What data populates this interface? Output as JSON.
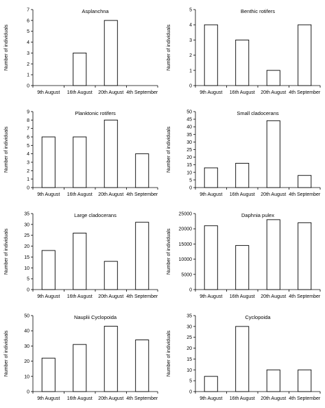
{
  "figure": {
    "xlabel_common": "",
    "ylabel_common": "Number of individuals"
  },
  "chart_data": [
    {
      "type": "bar",
      "title": "Asplanchna",
      "ylabel": "Number of individuals",
      "categories": [
        "9th August",
        "16th August",
        "20th August",
        "4th September"
      ],
      "values": [
        0,
        3,
        6,
        0
      ],
      "ylim": [
        0,
        7
      ],
      "yticks": [
        0,
        1,
        2,
        3,
        4,
        5,
        6,
        7
      ],
      "grid": false
    },
    {
      "type": "bar",
      "title": "Benthic rotifers",
      "ylabel": "Number of individuals",
      "categories": [
        "9th August",
        "16th August",
        "20th August",
        "4th September"
      ],
      "values": [
        4,
        3,
        1,
        4
      ],
      "ylim": [
        0,
        5
      ],
      "yticks": [
        0,
        1,
        2,
        3,
        4,
        5
      ],
      "grid": false
    },
    {
      "type": "bar",
      "title": "Planktonic rotifers",
      "ylabel": "Number of individuals",
      "categories": [
        "9th August",
        "16th August",
        "20th August",
        "4th September"
      ],
      "values": [
        6,
        6,
        8,
        4
      ],
      "ylim": [
        0,
        9
      ],
      "yticks": [
        0,
        1,
        2,
        3,
        4,
        5,
        6,
        7,
        8,
        9
      ],
      "grid": false
    },
    {
      "type": "bar",
      "title": "Small cladocerans",
      "ylabel": "Number of individuals",
      "categories": [
        "9th August",
        "16th August",
        "20th August",
        "4th September"
      ],
      "values": [
        13,
        16,
        44,
        8
      ],
      "ylim": [
        0,
        50
      ],
      "yticks": [
        0,
        5,
        10,
        15,
        20,
        25,
        30,
        35,
        40,
        45,
        50
      ],
      "grid": false
    },
    {
      "type": "bar",
      "title": "Large cladocerans",
      "ylabel": "Number of individuals",
      "categories": [
        "9th August",
        "16th August",
        "20th August",
        "4th September"
      ],
      "values": [
        18,
        26,
        13,
        31
      ],
      "ylim": [
        0,
        35
      ],
      "yticks": [
        0,
        5,
        10,
        15,
        20,
        25,
        30,
        35
      ],
      "grid": false
    },
    {
      "type": "bar",
      "title": "Daphnia pulex",
      "ylabel": "Number of individuals",
      "categories": [
        "9th August",
        "16th August",
        "20th August",
        "4th September"
      ],
      "values": [
        21000,
        14500,
        23000,
        22000
      ],
      "ylim": [
        0,
        25000
      ],
      "yticks": [
        0,
        5000,
        10000,
        15000,
        20000,
        25000
      ],
      "grid": false
    },
    {
      "type": "bar",
      "title": "Nauplii Cyclopoida",
      "ylabel": "Number of individuals",
      "categories": [
        "9th August",
        "16th August",
        "20th August",
        "4th September"
      ],
      "values": [
        22,
        31,
        43,
        34
      ],
      "ylim": [
        0,
        50
      ],
      "yticks": [
        0,
        10,
        20,
        30,
        40,
        50
      ],
      "grid": false
    },
    {
      "type": "bar",
      "title": "Cyclopoida",
      "ylabel": "Number of individuals",
      "categories": [
        "9th August",
        "16th August",
        "20th August",
        "4th September"
      ],
      "values": [
        7,
        30,
        10,
        10
      ],
      "ylim": [
        0,
        35
      ],
      "yticks": [
        0,
        5,
        10,
        15,
        20,
        25,
        30,
        35
      ],
      "grid": false
    }
  ],
  "style": {
    "bar_fill": "#ffffff",
    "bar_stroke": "#000000",
    "axis_color": "#000000"
  }
}
